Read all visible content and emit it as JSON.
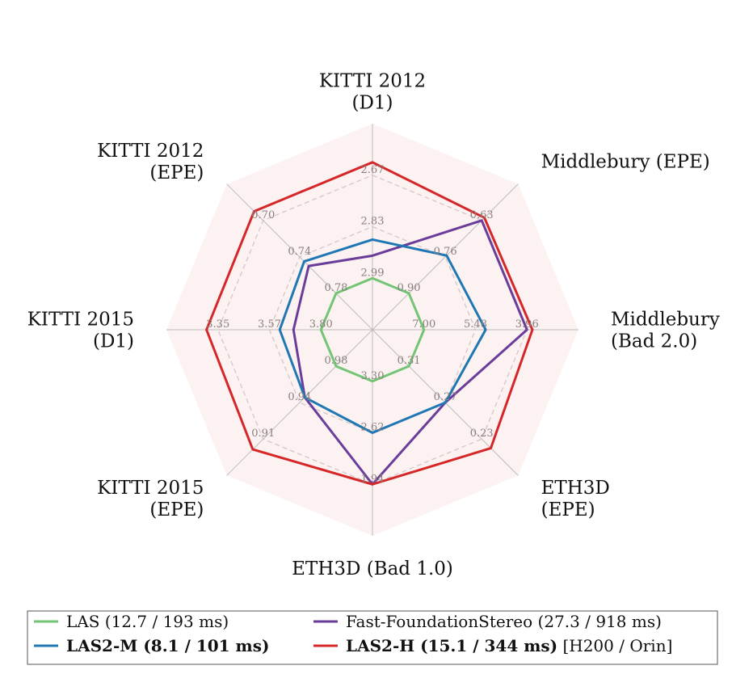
{
  "chart_data": {
    "type": "radar",
    "axes": [
      {
        "label": [
          "KITTI 2012",
          "(D1)"
        ],
        "ticks": [
          "2.99",
          "2.83",
          "2.67"
        ]
      },
      {
        "label": [
          "Middlebury (EPE)"
        ],
        "ticks": [
          "0.90",
          "0.76",
          "0.63"
        ]
      },
      {
        "label": [
          "Middlebury",
          "(Bad 2.0)"
        ],
        "ticks": [
          "7.00",
          "5.48",
          "3.96"
        ]
      },
      {
        "label": [
          "ETH3D",
          "(EPE)"
        ],
        "ticks": [
          "0.31",
          "0.27",
          "0.23"
        ]
      },
      {
        "label": [
          "ETH3D (Bad 1.0)"
        ],
        "ticks": [
          "3.30",
          "2.62",
          "1.94"
        ]
      },
      {
        "label": [
          "KITTI 2015",
          "(EPE)"
        ],
        "ticks": [
          "0.98",
          "0.94",
          "0.91"
        ]
      },
      {
        "label": [
          "KITTI 2015",
          "(D1)"
        ],
        "ticks": [
          "3.80",
          "3.57",
          "3.35"
        ]
      },
      {
        "label": [
          "KITTI 2012",
          "(EPE)"
        ],
        "ticks": [
          "0.78",
          "0.74",
          "0.70"
        ]
      }
    ],
    "series": [
      {
        "name": "LAS",
        "detail": "(12.7 / 193 ms)",
        "bold": false,
        "color": "#74c476",
        "values": [
          2.99,
          0.9,
          7.0,
          0.31,
          3.3,
          0.98,
          3.8,
          0.78
        ]
      },
      {
        "name": "Fast-FoundationStereo",
        "detail": "(27.3 / 918 ms)",
        "bold": false,
        "color": "#6a3d9a",
        "values": [
          2.92,
          0.63,
          3.96,
          0.27,
          1.94,
          0.95,
          3.68,
          0.75
        ]
      },
      {
        "name": "LAS2-M",
        "detail": "(8.1 / 101 ms)",
        "bold": true,
        "color": "#1f77b4",
        "values": [
          2.87,
          0.76,
          5.18,
          0.27,
          2.62,
          0.95,
          3.62,
          0.745
        ]
      },
      {
        "name": "LAS2-H",
        "detail": "(15.1 / 344 ms)",
        "suffix": " [H200 / Orin]",
        "bold": true,
        "color": "#d62728",
        "values": [
          2.63,
          0.62,
          3.8,
          0.22,
          1.94,
          0.9,
          3.3,
          0.69
        ]
      }
    ],
    "legend_placement": "bottom",
    "grid": true
  }
}
